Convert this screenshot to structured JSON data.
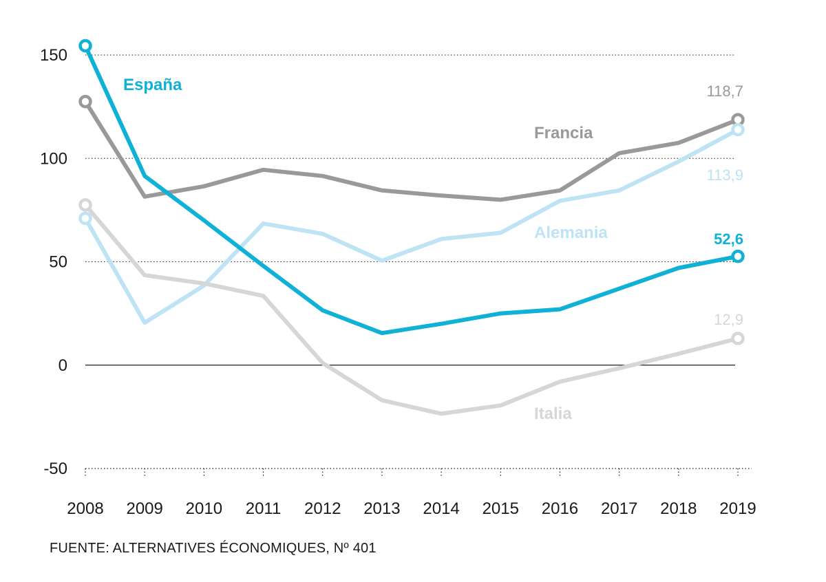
{
  "chart_data": {
    "type": "line",
    "x": [
      "2008",
      "2009",
      "2010",
      "2011",
      "2012",
      "2013",
      "2014",
      "2015",
      "2016",
      "2017",
      "2018",
      "2019"
    ],
    "ylim": [
      -50,
      150
    ],
    "yticks": [
      "150",
      "100",
      "50",
      "0",
      "-50"
    ],
    "grid": true,
    "series": [
      {
        "name": "Francia",
        "color": "#999999",
        "values": [
          127.5,
          81.5,
          86.5,
          94.5,
          91.5,
          84.5,
          82.0,
          80.0,
          84.5,
          102.5,
          107.5,
          118.7
        ],
        "end_label": "118,7",
        "end_label_color": "#999999"
      },
      {
        "name": "Alemania",
        "color": "#bde3f5",
        "values": [
          71.0,
          20.5,
          38.5,
          68.5,
          63.5,
          50.5,
          61.0,
          64.0,
          79.5,
          84.5,
          98.5,
          113.9
        ],
        "end_label": "113,9",
        "end_label_color": "#bde3f5"
      },
      {
        "name": "España",
        "color": "#0fb1d6",
        "values": [
          154.5,
          91.5,
          70.0,
          48.0,
          26.5,
          15.5,
          20.0,
          25.0,
          27.0,
          37.0,
          47.0,
          52.6
        ],
        "end_label": "52,6",
        "end_label_color": "#0fb1d6"
      },
      {
        "name": "Italia",
        "color": "#d6d6d6",
        "values": [
          77.5,
          43.5,
          39.5,
          33.5,
          1.0,
          -17.0,
          -23.5,
          -19.5,
          -8.0,
          -1.5,
          5.5,
          12.9
        ],
        "end_label": "12,9",
        "end_label_color": "#d6d6d6"
      }
    ],
    "source": "FUENTE: ALTERNATIVES ÉCONOMIQUES, Nº 401"
  }
}
